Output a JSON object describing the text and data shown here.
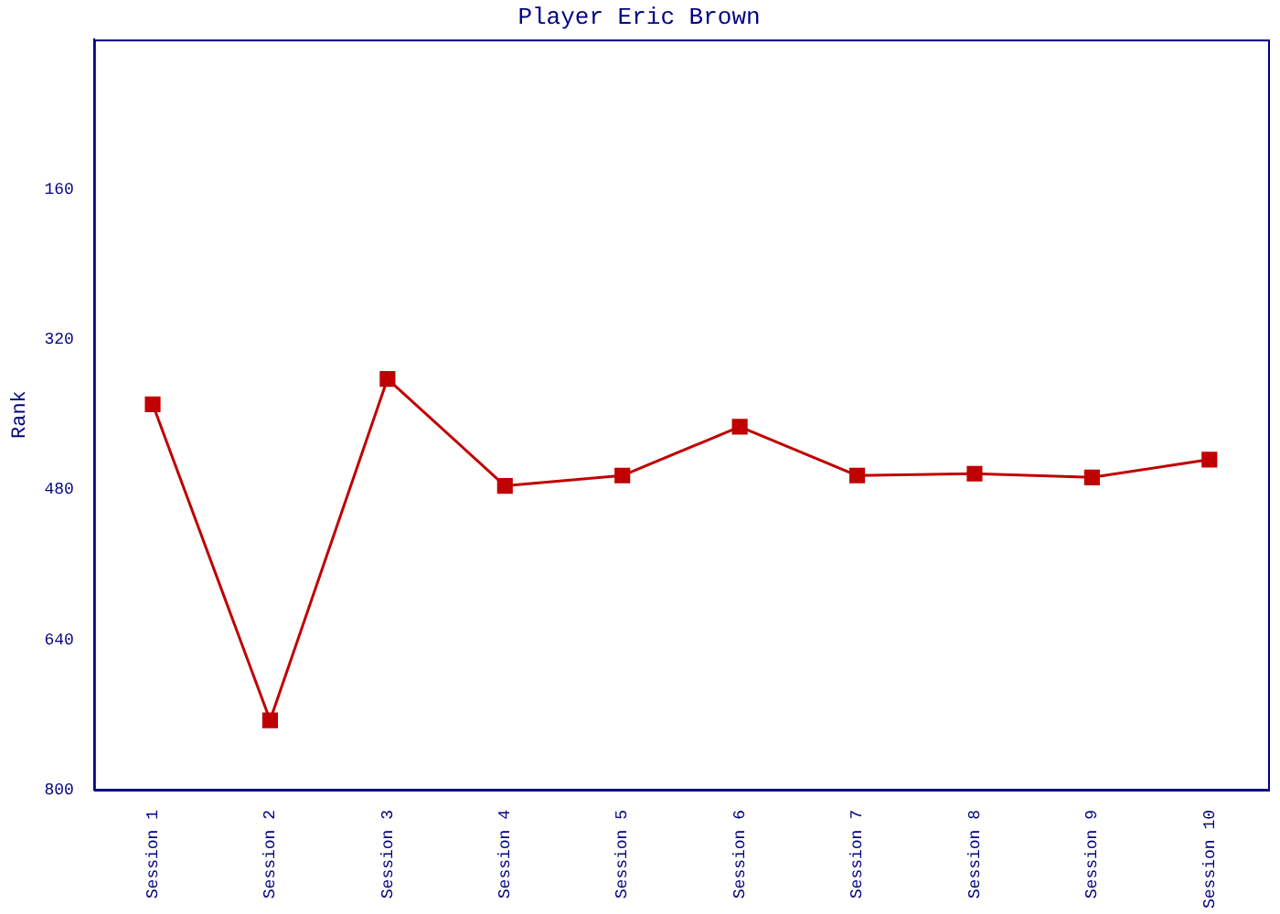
{
  "chart_data": {
    "type": "line",
    "title": "Player Eric Brown",
    "ylabel": "Rank",
    "categories": [
      "Session 1",
      "Session 2",
      "Session 3",
      "Session 4",
      "Session 5",
      "Session 6",
      "Session 7",
      "Session 8",
      "Session 9",
      "Session 10"
    ],
    "series": [
      {
        "color": "#c00000",
        "values": [
          389,
          726,
          362,
          476,
          465,
          413,
          465,
          463,
          467,
          448
        ]
      }
    ],
    "ylim": [
      800,
      0
    ],
    "yticks": [
      160,
      320,
      480,
      640,
      800
    ],
    "grid": false,
    "legend": false,
    "marker": "square",
    "line_style": "solid"
  }
}
